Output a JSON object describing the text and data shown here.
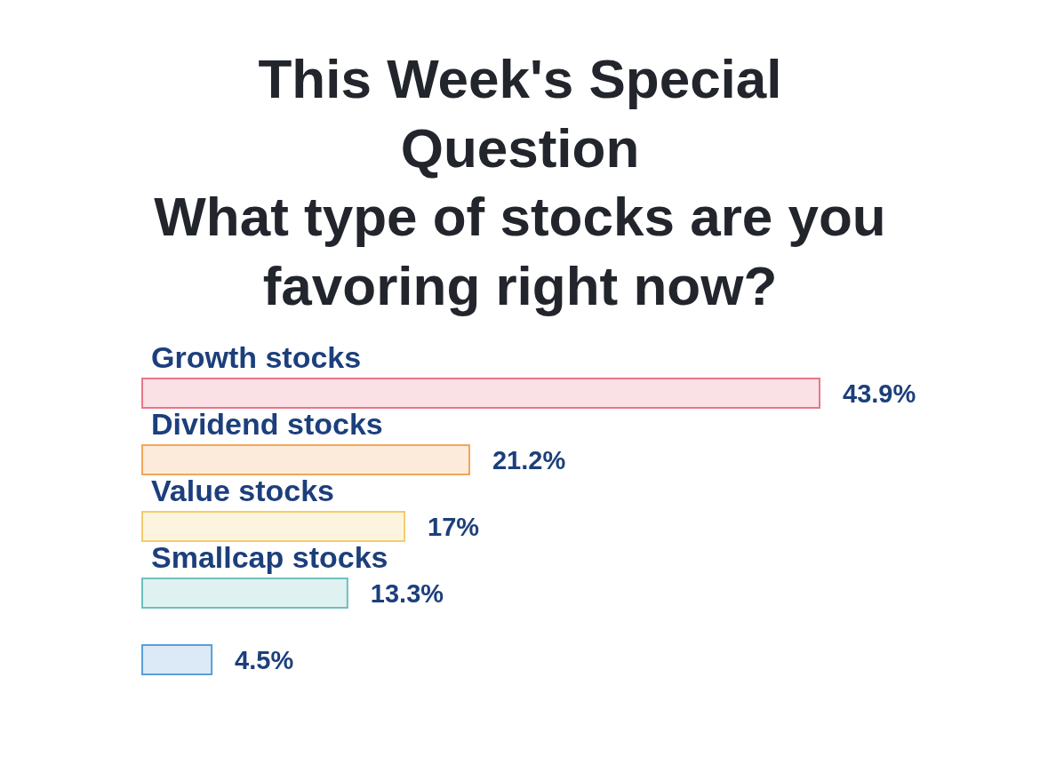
{
  "chart_data": {
    "type": "bar",
    "orientation": "horizontal",
    "title": "This Week's Special Question",
    "subtitle": "What type of stocks are you favoring right now?",
    "categories": [
      "Growth stocks",
      "Dividend stocks",
      "Value stocks",
      "Smallcap stocks",
      null
    ],
    "values": [
      43.9,
      21.2,
      17,
      13.3,
      4.5
    ],
    "colors": [
      "#e8768a",
      "#f0a65a",
      "#f3cc6a",
      "#6cc0be",
      "#5a9fd6"
    ],
    "value_labels": [
      "43.9%",
      "21.2%",
      "17%",
      "13.3%",
      "4.5%"
    ]
  }
}
